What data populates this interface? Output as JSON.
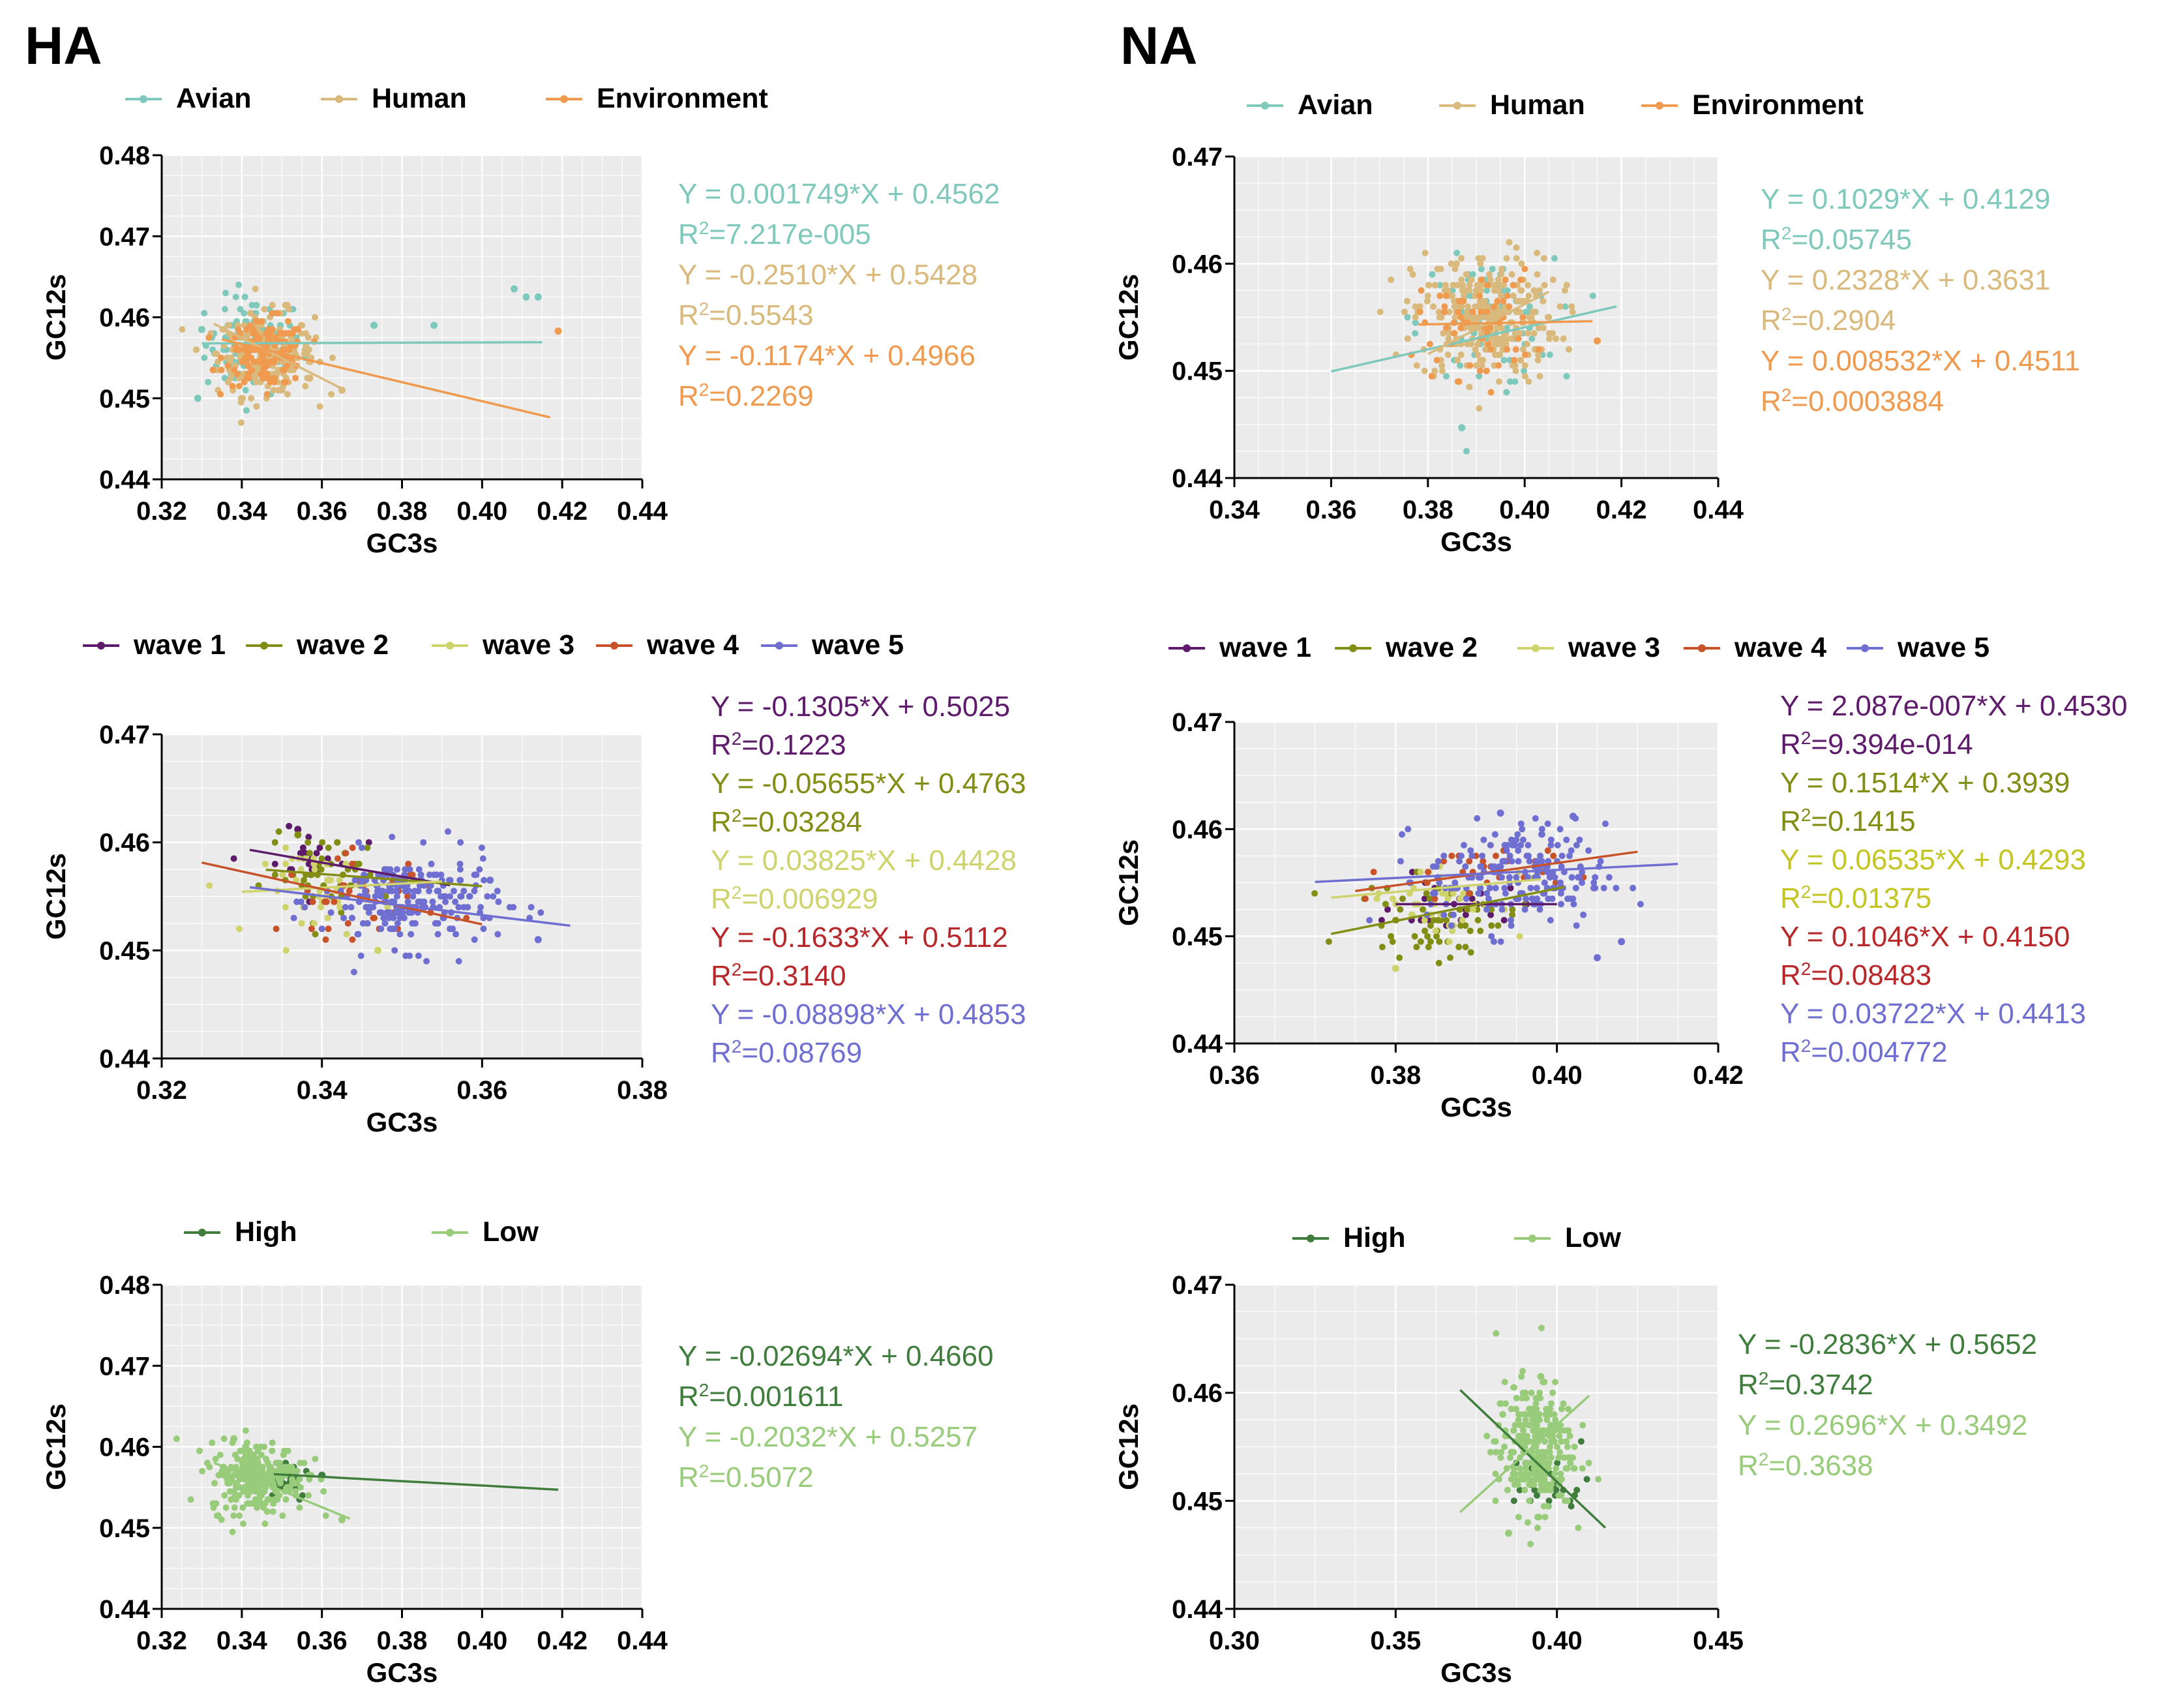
{
  "colors": {
    "avian": "#7ec8bc",
    "human": "#d9b97c",
    "environment": "#ef9a4f",
    "wave1": "#5e1a6b",
    "wave2": "#828d13",
    "wave3": "#cfd36c",
    "wave4": "#c8532a",
    "wave5": "#6f6ed1",
    "wave4_eq": "#b8282a",
    "wave3_eq": "#c3c523",
    "high": "#3f7d3c",
    "low": "#99cc7a",
    "axis": "#000000",
    "grid": "#ffffff",
    "panel_bg": "#ebebeb"
  },
  "panel_titles": {
    "ha": "HA",
    "na": "NA"
  },
  "chart_data": [
    {
      "id": "ha_host",
      "type": "scatter",
      "xlabel": "GC3s",
      "ylabel": "GC12s",
      "xlim": [
        0.32,
        0.44
      ],
      "ylim": [
        0.44,
        0.48
      ],
      "xticks": [
        "0.32",
        "0.34",
        "0.36",
        "0.38",
        "0.40",
        "0.42",
        "0.44"
      ],
      "yticks": [
        "0.44",
        "0.45",
        "0.46",
        "0.47",
        "0.48"
      ],
      "series": [
        {
          "name": "Avian",
          "color_key": "avian",
          "line": {
            "slope": 0.001749,
            "intercept": 0.4562,
            "x": [
              0.33,
              0.415
            ]
          },
          "cluster": {
            "cx": 0.343,
            "cy": 0.4565,
            "sx": 0.006,
            "sy": 0.003,
            "n": 110
          },
          "extra_points": [
            [
              0.329,
              0.45
            ],
            [
              0.33,
              0.4585
            ],
            [
              0.373,
              0.459
            ],
            [
              0.388,
              0.459
            ],
            [
              0.408,
              0.4635
            ],
            [
              0.411,
              0.4625
            ],
            [
              0.414,
              0.4625
            ]
          ],
          "equation": "Y = 0.001749*X + 0.4562",
          "r2": "=7.217e-005"
        },
        {
          "name": "Human",
          "color_key": "human",
          "line": {
            "slope": -0.251,
            "intercept": 0.5428,
            "x": [
              0.333,
              0.365
            ]
          },
          "cluster": {
            "cx": 0.346,
            "cy": 0.4555,
            "sx": 0.006,
            "sy": 0.0025,
            "n": 260
          },
          "extra_points": [
            [
              0.365,
              0.451
            ],
            [
              0.357,
              0.4525
            ]
          ],
          "equation": "Y = -0.2510*X + 0.5428",
          "r2": "=0.5543"
        },
        {
          "name": "Environment",
          "color_key": "environment",
          "line": {
            "slope": -0.1174,
            "intercept": 0.4966,
            "x": [
              0.335,
              0.417
            ]
          },
          "cluster": {
            "cx": 0.346,
            "cy": 0.4555,
            "sx": 0.005,
            "sy": 0.002,
            "n": 150
          },
          "extra_points": [
            [
              0.419,
              0.4583
            ]
          ],
          "equation": "Y = -0.1174*X + 0.4966",
          "r2": "=0.2269"
        }
      ]
    },
    {
      "id": "na_host",
      "type": "scatter",
      "xlabel": "GC3s",
      "ylabel": "GC12s",
      "xlim": [
        0.34,
        0.44
      ],
      "ylim": [
        0.44,
        0.47
      ],
      "xticks": [
        "0.34",
        "0.36",
        "0.38",
        "0.40",
        "0.42",
        "0.44"
      ],
      "yticks": [
        "0.44",
        "0.45",
        "0.46",
        "0.47"
      ],
      "series": [
        {
          "name": "Avian",
          "color_key": "avian",
          "line": {
            "slope": 0.1029,
            "intercept": 0.4129,
            "x": [
              0.36,
              0.419
            ]
          },
          "cluster": {
            "cx": 0.392,
            "cy": 0.4545,
            "sx": 0.007,
            "sy": 0.003,
            "n": 90
          },
          "extra_points": [
            [
              0.387,
              0.4447
            ]
          ],
          "equation": "Y = 0.1029*X + 0.4129",
          "r2": "=0.05745"
        },
        {
          "name": "Human",
          "color_key": "human",
          "line": {
            "slope": 0.2328,
            "intercept": 0.3631,
            "x": [
              0.38,
              0.405
            ]
          },
          "cluster": {
            "cx": 0.392,
            "cy": 0.455,
            "sx": 0.0075,
            "sy": 0.003,
            "n": 300
          },
          "extra_points": [],
          "equation": "Y = 0.2328*X + 0.3631",
          "r2": "=0.2904"
        },
        {
          "name": "Environment",
          "color_key": "environment",
          "line": {
            "slope": 0.008532,
            "intercept": 0.4511,
            "x": [
              0.378,
              0.414
            ]
          },
          "cluster": {
            "cx": 0.39,
            "cy": 0.4545,
            "sx": 0.006,
            "sy": 0.0025,
            "n": 60
          },
          "extra_points": [
            [
              0.415,
              0.4528
            ]
          ],
          "equation": "Y = 0.008532*X + 0.4511",
          "r2": "=0.0003884"
        }
      ]
    },
    {
      "id": "ha_wave",
      "type": "scatter",
      "xlabel": "GC3s",
      "ylabel": "GC12s",
      "xlim": [
        0.32,
        0.38
      ],
      "ylim": [
        0.44,
        0.47
      ],
      "xticks": [
        "0.32",
        "0.34",
        "0.36",
        "0.38"
      ],
      "yticks": [
        "0.44",
        "0.45",
        "0.46",
        "0.47"
      ],
      "series": [
        {
          "name": "wave 1",
          "color_key": "wave1",
          "line": {
            "slope": -0.1305,
            "intercept": 0.5025,
            "x": [
              0.331,
              0.356
            ]
          },
          "cluster": {
            "cx": 0.338,
            "cy": 0.458,
            "sx": 0.003,
            "sy": 0.0015,
            "n": 25
          },
          "extra_points": [
            [
              0.337,
              0.4612
            ]
          ],
          "equation": "Y = -0.1305*X + 0.5025",
          "r2": "=0.1223"
        },
        {
          "name": "wave 2",
          "color_key": "wave2",
          "line": {
            "slope": -0.05655,
            "intercept": 0.4763,
            "x": [
              0.333,
              0.36
            ]
          },
          "cluster": {
            "cx": 0.341,
            "cy": 0.457,
            "sx": 0.004,
            "sy": 0.0018,
            "n": 50
          },
          "extra_points": [
            [
              0.337,
              0.4607
            ]
          ],
          "equation": "Y = -0.05655*X + 0.4763",
          "r2": "=0.03284"
        },
        {
          "name": "wave 3",
          "color_key": "wave3",
          "line": {
            "slope": 0.03825,
            "intercept": 0.4428,
            "x": [
              0.33,
              0.355
            ]
          },
          "cluster": {
            "cx": 0.341,
            "cy": 0.4555,
            "sx": 0.004,
            "sy": 0.002,
            "n": 40
          },
          "extra_points": [
            [
              0.347,
              0.45
            ]
          ],
          "equation": "Y = 0.03825*X + 0.4428",
          "r2": "=0.006929"
        },
        {
          "name": "wave 4",
          "color_key": "wave4",
          "eq_color_key": "wave4_eq",
          "line": {
            "slope": -0.1633,
            "intercept": 0.5112,
            "x": [
              0.325,
              0.36
            ]
          },
          "cluster": {
            "cx": 0.345,
            "cy": 0.455,
            "sx": 0.005,
            "sy": 0.0018,
            "n": 45
          },
          "extra_points": [],
          "equation": "Y = -0.1633*X + 0.5112",
          "r2": "=0.3140"
        },
        {
          "name": "wave 5",
          "color_key": "wave5",
          "line": {
            "slope": -0.08898,
            "intercept": 0.4853,
            "x": [
              0.331,
              0.371
            ]
          },
          "cluster": {
            "cx": 0.351,
            "cy": 0.4545,
            "sx": 0.0055,
            "sy": 0.0022,
            "n": 220
          },
          "extra_points": [
            [
              0.367,
              0.451
            ],
            [
              0.361,
              0.4565
            ]
          ],
          "equation": "Y = -0.08898*X + 0.4853",
          "r2": "=0.08769"
        }
      ]
    },
    {
      "id": "na_wave",
      "type": "scatter",
      "xlabel": "GC3s",
      "ylabel": "GC12s",
      "xlim": [
        0.36,
        0.42
      ],
      "ylim": [
        0.44,
        0.47
      ],
      "xticks": [
        "0.36",
        "0.38",
        "0.40",
        "0.42"
      ],
      "yticks": [
        "0.44",
        "0.45",
        "0.46",
        "0.47"
      ],
      "series": [
        {
          "name": "wave 1",
          "color_key": "wave1",
          "line": {
            "slope": 2.087e-07,
            "intercept": 0.453,
            "x": [
              0.38,
              0.4
            ]
          },
          "cluster": {
            "cx": 0.388,
            "cy": 0.4528,
            "sx": 0.004,
            "sy": 0.0012,
            "n": 25
          },
          "extra_points": [],
          "equation": "Y = 2.087e-007*X + 0.4530",
          "r2": "=9.394e-014"
        },
        {
          "name": "wave 2",
          "color_key": "wave2",
          "line": {
            "slope": 0.1514,
            "intercept": 0.3939,
            "x": [
              0.372,
              0.401
            ]
          },
          "cluster": {
            "cx": 0.385,
            "cy": 0.4515,
            "sx": 0.005,
            "sy": 0.0018,
            "n": 60
          },
          "extra_points": [],
          "equation": "Y = 0.1514*X + 0.3939",
          "r2": "=0.1415"
        },
        {
          "name": "wave 3",
          "color_key": "wave3",
          "eq_color_key": "wave3_eq",
          "line": {
            "slope": 0.06535,
            "intercept": 0.4293,
            "x": [
              0.372,
              0.398
            ]
          },
          "cluster": {
            "cx": 0.386,
            "cy": 0.4535,
            "sx": 0.005,
            "sy": 0.0018,
            "n": 40
          },
          "extra_points": [
            [
              0.38,
              0.447
            ]
          ],
          "equation": "Y = 0.06535*X + 0.4293",
          "r2": "=0.01375"
        },
        {
          "name": "wave 4",
          "color_key": "wave4",
          "eq_color_key": "wave4_eq",
          "line": {
            "slope": 0.1046,
            "intercept": 0.415,
            "x": [
              0.375,
              0.41
            ]
          },
          "cluster": {
            "cx": 0.389,
            "cy": 0.456,
            "sx": 0.005,
            "sy": 0.0015,
            "n": 35
          },
          "extra_points": [],
          "equation": "Y = 0.1046*X + 0.4150",
          "r2": "=0.08483"
        },
        {
          "name": "wave 5",
          "color_key": "wave5",
          "line": {
            "slope": 0.03722,
            "intercept": 0.4413,
            "x": [
              0.37,
              0.415
            ]
          },
          "cluster": {
            "cx": 0.395,
            "cy": 0.4555,
            "sx": 0.0055,
            "sy": 0.0025,
            "n": 200
          },
          "extra_points": [
            [
              0.405,
              0.448
            ],
            [
              0.408,
              0.4495
            ],
            [
              0.393,
              0.4615
            ],
            [
              0.402,
              0.4612
            ]
          ],
          "equation": "Y = 0.03722*X + 0.4413",
          "r2": "=0.004772"
        }
      ]
    },
    {
      "id": "ha_patho",
      "type": "scatter",
      "xlabel": "GC3s",
      "ylabel": "GC12s",
      "xlim": [
        0.32,
        0.44
      ],
      "ylim": [
        0.44,
        0.48
      ],
      "xticks": [
        "0.32",
        "0.34",
        "0.36",
        "0.38",
        "0.40",
        "0.42",
        "0.44"
      ],
      "yticks": [
        "0.44",
        "0.45",
        "0.46",
        "0.47",
        "0.48"
      ],
      "series": [
        {
          "name": "High",
          "color_key": "high",
          "line": {
            "slope": -0.02694,
            "intercept": 0.466,
            "x": [
              0.348,
              0.419
            ]
          },
          "cluster": {
            "cx": 0.351,
            "cy": 0.4565,
            "sx": 0.003,
            "sy": 0.0015,
            "n": 30
          },
          "extra_points": [
            [
              0.36,
              0.4565
            ]
          ],
          "equation": "Y = -0.02694*X + 0.4660",
          "r2": "=0.001611"
        },
        {
          "name": "Low",
          "color_key": "low",
          "line": {
            "slope": -0.2032,
            "intercept": 0.5257,
            "x": [
              0.333,
              0.367
            ]
          },
          "cluster": {
            "cx": 0.344,
            "cy": 0.4563,
            "sx": 0.006,
            "sy": 0.0022,
            "n": 260
          },
          "extra_points": [
            [
              0.365,
              0.451
            ],
            [
              0.338,
              0.461
            ]
          ],
          "equation": "Y = -0.2032*X + 0.5257",
          "r2": "=0.5072"
        }
      ]
    },
    {
      "id": "na_patho",
      "type": "scatter",
      "xlabel": "GC3s",
      "ylabel": "GC12s",
      "xlim": [
        0.3,
        0.45
      ],
      "ylim": [
        0.44,
        0.47
      ],
      "xticks": [
        "0.30",
        "0.35",
        "0.40",
        "0.45"
      ],
      "yticks": [
        "0.44",
        "0.45",
        "0.46",
        "0.47"
      ],
      "series": [
        {
          "name": "High",
          "color_key": "high",
          "line": {
            "slope": -0.2836,
            "intercept": 0.5652,
            "x": [
              0.37,
              0.415
            ]
          },
          "cluster": {
            "cx": 0.398,
            "cy": 0.4515,
            "sx": 0.006,
            "sy": 0.0015,
            "n": 30
          },
          "extra_points": [],
          "equation": "Y = -0.2836*X + 0.5652",
          "r2": "=0.3742"
        },
        {
          "name": "Low",
          "color_key": "low",
          "line": {
            "slope": 0.2696,
            "intercept": 0.3492,
            "x": [
              0.37,
              0.41
            ]
          },
          "cluster": {
            "cx": 0.393,
            "cy": 0.455,
            "sx": 0.006,
            "sy": 0.003,
            "n": 280
          },
          "extra_points": [
            [
              0.385,
              0.447
            ],
            [
              0.395,
              0.4615
            ]
          ],
          "equation": "Y = 0.2696*X + 0.3492",
          "r2": "=0.3638"
        }
      ]
    }
  ]
}
